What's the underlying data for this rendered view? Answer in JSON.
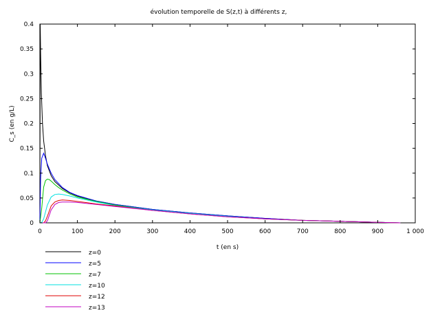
{
  "chart_data": {
    "type": "line",
    "title": "évolution temporelle de S(z,t) à différents z,",
    "xlabel": "t (en s)",
    "ylabel": "C_s (en g/L)",
    "xlim": [
      0,
      1000
    ],
    "ylim": [
      0,
      0.4
    ],
    "x_ticks": [
      0,
      100,
      200,
      300,
      400,
      500,
      600,
      700,
      800,
      900,
      1000
    ],
    "x_tick_labels": [
      "0",
      "100",
      "200",
      "300",
      "400",
      "500",
      "600",
      "700",
      "800",
      "900",
      "1 000"
    ],
    "y_ticks": [
      0,
      0.05,
      0.1,
      0.15,
      0.2,
      0.25,
      0.3,
      0.35,
      0.4
    ],
    "y_tick_labels": [
      "0",
      "0.05",
      "0.1",
      "0.15",
      "0.2",
      "0.25",
      "0.3",
      "0.35",
      "0.4"
    ],
    "grid": false,
    "legend_position": "below",
    "series": [
      {
        "name": "z=0",
        "color": "#000000",
        "x": [
          0,
          1,
          2,
          4,
          7,
          10,
          15,
          20,
          30,
          40,
          60,
          80,
          100,
          150,
          200,
          300,
          400,
          500,
          600,
          700,
          800,
          900,
          960
        ],
        "y": [
          0,
          0.4,
          0.34,
          0.26,
          0.2,
          0.165,
          0.135,
          0.115,
          0.095,
          0.083,
          0.069,
          0.06,
          0.054,
          0.044,
          0.037,
          0.027,
          0.02,
          0.014,
          0.009,
          0.005,
          0.003,
          0.001,
          0.0
        ]
      },
      {
        "name": "z=5",
        "color": "#0000ff",
        "x": [
          0,
          2,
          5,
          10,
          15,
          20,
          30,
          40,
          60,
          80,
          100,
          150,
          200,
          300,
          400,
          500,
          600,
          700,
          800,
          900,
          960
        ],
        "y": [
          0,
          0.09,
          0.13,
          0.14,
          0.13,
          0.118,
          0.1,
          0.087,
          0.071,
          0.061,
          0.055,
          0.044,
          0.037,
          0.027,
          0.02,
          0.014,
          0.009,
          0.005,
          0.003,
          0.001,
          0.0
        ]
      },
      {
        "name": "z=7",
        "color": "#00c000",
        "x": [
          0,
          5,
          10,
          15,
          20,
          25,
          30,
          40,
          50,
          60,
          80,
          100,
          150,
          200,
          300,
          400,
          500,
          600,
          700,
          800,
          900,
          960
        ],
        "y": [
          0,
          0.03,
          0.072,
          0.085,
          0.088,
          0.087,
          0.084,
          0.077,
          0.071,
          0.066,
          0.058,
          0.052,
          0.043,
          0.036,
          0.026,
          0.019,
          0.013,
          0.008,
          0.005,
          0.003,
          0.001,
          0.0
        ]
      },
      {
        "name": "z=10",
        "color": "#00e0e0",
        "x": [
          0,
          5,
          10,
          20,
          30,
          40,
          50,
          60,
          80,
          100,
          150,
          200,
          300,
          400,
          500,
          600,
          700,
          800,
          900,
          960
        ],
        "y": [
          0,
          0.001,
          0.008,
          0.036,
          0.052,
          0.057,
          0.058,
          0.057,
          0.054,
          0.05,
          0.042,
          0.035,
          0.026,
          0.019,
          0.013,
          0.008,
          0.005,
          0.003,
          0.001,
          0.0
        ]
      },
      {
        "name": "z=12",
        "color": "#e00000",
        "x": [
          0,
          10,
          15,
          20,
          30,
          40,
          50,
          60,
          80,
          100,
          150,
          200,
          300,
          400,
          500,
          600,
          700,
          800,
          900,
          960
        ],
        "y": [
          0,
          0.0,
          0.004,
          0.013,
          0.034,
          0.042,
          0.045,
          0.046,
          0.045,
          0.043,
          0.038,
          0.034,
          0.025,
          0.018,
          0.012,
          0.008,
          0.005,
          0.003,
          0.001,
          0.0
        ]
      },
      {
        "name": "z=13",
        "color": "#c000c0",
        "x": [
          0,
          15,
          20,
          30,
          40,
          50,
          60,
          80,
          100,
          150,
          200,
          300,
          400,
          500,
          600,
          700,
          800,
          900,
          960
        ],
        "y": [
          0,
          0.0,
          0.004,
          0.026,
          0.037,
          0.041,
          0.042,
          0.042,
          0.041,
          0.037,
          0.033,
          0.025,
          0.018,
          0.012,
          0.008,
          0.005,
          0.003,
          0.001,
          0.0
        ]
      }
    ]
  }
}
